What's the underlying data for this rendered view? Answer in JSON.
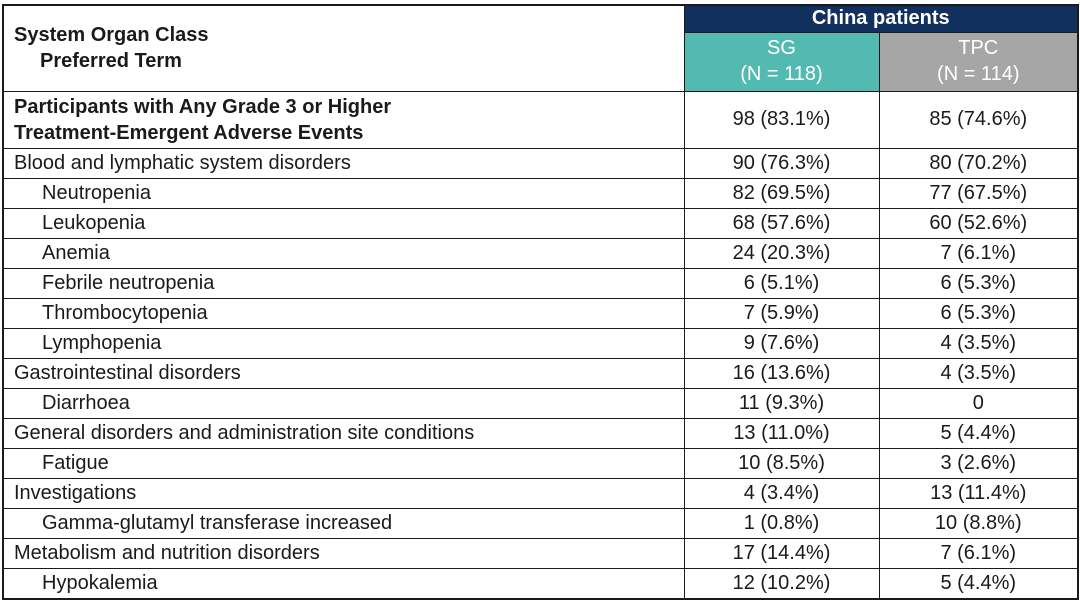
{
  "colors": {
    "navy": "#12305e",
    "teal": "#53bab2",
    "gray": "#a6a6a6",
    "text": "#1a1a1a"
  },
  "header": {
    "soc_line1": "System Organ Class",
    "soc_line2": "Preferred Term",
    "group_label": "China patients",
    "columns": [
      {
        "name": "SG",
        "n": "(N = 118)"
      },
      {
        "name": "TPC",
        "n": "(N = 114)"
      }
    ]
  },
  "rows": [
    {
      "label": "Participants with Any Grade 3 or Higher\nTreatment-Emergent Adverse Events",
      "sg": "98 (83.1%)",
      "tpc": "85 (74.6%)",
      "bold": true,
      "indent": false
    },
    {
      "label": "Blood and lymphatic system disorders",
      "sg": "90 (76.3%)",
      "tpc": "80 (70.2%)",
      "bold": false,
      "indent": false
    },
    {
      "label": "Neutropenia",
      "sg": "82 (69.5%)",
      "tpc": "77 (67.5%)",
      "bold": false,
      "indent": true
    },
    {
      "label": "Leukopenia",
      "sg": "68 (57.6%)",
      "tpc": "60 (52.6%)",
      "bold": false,
      "indent": true
    },
    {
      "label": "Anemia",
      "sg": "24 (20.3%)",
      "tpc": "7 (6.1%)",
      "bold": false,
      "indent": true
    },
    {
      "label": "Febrile neutropenia",
      "sg": "6 (5.1%)",
      "tpc": "6 (5.3%)",
      "bold": false,
      "indent": true
    },
    {
      "label": "Thrombocytopenia",
      "sg": "7 (5.9%)",
      "tpc": "6 (5.3%)",
      "bold": false,
      "indent": true
    },
    {
      "label": "Lymphopenia",
      "sg": "9 (7.6%)",
      "tpc": "4 (3.5%)",
      "bold": false,
      "indent": true
    },
    {
      "label": "Gastrointestinal disorders",
      "sg": "16 (13.6%)",
      "tpc": "4 (3.5%)",
      "bold": false,
      "indent": false
    },
    {
      "label": "Diarrhoea",
      "sg": "11 (9.3%)",
      "tpc": "0",
      "bold": false,
      "indent": true
    },
    {
      "label": "General disorders and administration site conditions",
      "sg": "13 (11.0%)",
      "tpc": "5 (4.4%)",
      "bold": false,
      "indent": false
    },
    {
      "label": "Fatigue",
      "sg": "10 (8.5%)",
      "tpc": "3 (2.6%)",
      "bold": false,
      "indent": true
    },
    {
      "label": "Investigations",
      "sg": "4 (3.4%)",
      "tpc": "13 (11.4%)",
      "bold": false,
      "indent": false
    },
    {
      "label": "Gamma-glutamyl transferase increased",
      "sg": "1 (0.8%)",
      "tpc": "10 (8.8%)",
      "bold": false,
      "indent": true
    },
    {
      "label": "Metabolism and nutrition disorders",
      "sg": "17 (14.4%)",
      "tpc": "7 (6.1%)",
      "bold": false,
      "indent": false
    },
    {
      "label": "Hypokalemia",
      "sg": "12 (10.2%)",
      "tpc": "5 (4.4%)",
      "bold": false,
      "indent": true
    }
  ]
}
